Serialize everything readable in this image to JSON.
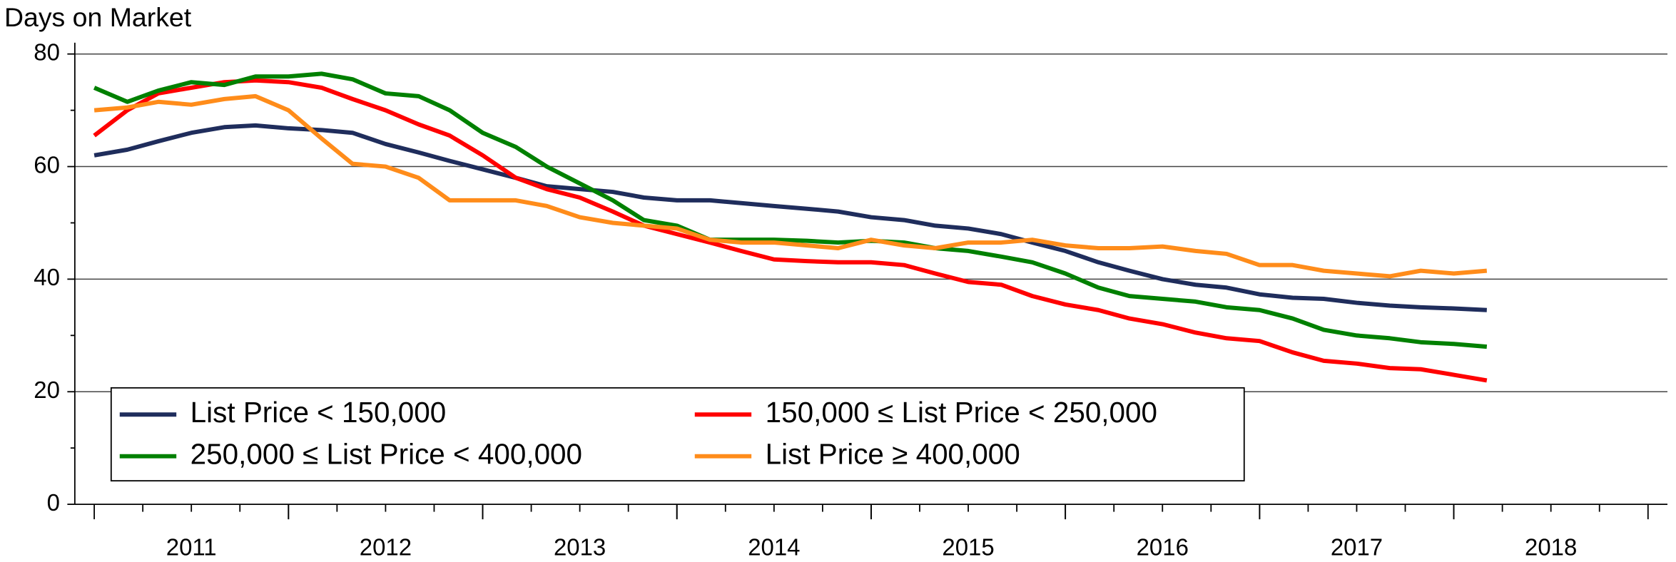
{
  "chart_data": {
    "type": "line",
    "ylabel": "Days on Market",
    "x": [
      2011,
      2011.17,
      2011.33,
      2011.5,
      2011.67,
      2011.83,
      2012,
      2012.17,
      2012.33,
      2012.5,
      2012.67,
      2012.83,
      2013,
      2013.17,
      2013.33,
      2013.5,
      2013.67,
      2013.83,
      2014,
      2014.17,
      2014.33,
      2014.5,
      2014.67,
      2014.83,
      2015,
      2015.17,
      2015.33,
      2015.5,
      2015.67,
      2015.83,
      2016,
      2016.17,
      2016.33,
      2016.5,
      2016.67,
      2016.83,
      2017,
      2017.17,
      2017.33,
      2017.5,
      2017.67,
      2017.83,
      2018,
      2018.17
    ],
    "series": [
      {
        "name": "List Price < 150,000",
        "color": "#1f2d5c",
        "values": [
          62,
          63,
          64.5,
          66,
          67,
          67.3,
          66.8,
          66.5,
          66,
          64,
          62.5,
          61,
          59.5,
          58,
          56.5,
          56,
          55.5,
          54.5,
          54,
          54,
          53.5,
          53,
          52.5,
          52,
          51,
          50.5,
          49.5,
          49,
          48,
          46.5,
          45,
          43,
          41.5,
          40,
          39,
          38.5,
          37.3,
          36.7,
          36.5,
          35.8,
          35.3,
          35,
          34.8,
          34.5
        ]
      },
      {
        "name": "150,000 ≤ List Price < 250,000",
        "color": "#ff0000",
        "values": [
          65.5,
          70,
          73,
          74,
          75,
          75.3,
          75,
          74,
          72,
          70,
          67.5,
          65.5,
          62,
          58,
          56,
          54.5,
          52,
          49.5,
          48,
          46.5,
          45,
          43.5,
          43.2,
          43,
          43,
          42.5,
          41,
          39.5,
          39,
          37,
          35.5,
          34.5,
          33,
          32,
          30.5,
          29.5,
          29,
          27,
          25.5,
          25,
          24.2,
          24,
          23,
          22
        ]
      },
      {
        "name": "250,000 ≤ List Price < 400,000",
        "color": "#008000",
        "values": [
          74,
          71.5,
          73.5,
          75,
          74.5,
          76,
          76,
          76.5,
          75.5,
          73,
          72.5,
          70,
          66,
          63.5,
          60,
          57,
          54,
          50.5,
          49.5,
          47,
          47,
          47,
          46.8,
          46.5,
          46.8,
          46.5,
          45.5,
          45,
          44,
          43,
          41,
          38.5,
          37,
          36.5,
          36,
          35,
          34.5,
          33,
          31,
          30,
          29.5,
          28.8,
          28.5,
          28
        ]
      },
      {
        "name": "List Price ≥ 400,000",
        "color": "#ff8c1a",
        "values": [
          70,
          70.5,
          71.5,
          71,
          72,
          72.5,
          70,
          65,
          60.5,
          60,
          58,
          54,
          54,
          54,
          53,
          51,
          50,
          49.5,
          49,
          47,
          46.5,
          46.5,
          46,
          45.5,
          47,
          46,
          45.5,
          46.5,
          46.5,
          47,
          46,
          45.5,
          45.5,
          45.8,
          45,
          44.5,
          42.5,
          42.5,
          41.5,
          41,
          40.5,
          41.5,
          41,
          41.5
        ]
      }
    ],
    "xlim": [
      2010.9,
      2019.1
    ],
    "xticks": [
      {
        "value": 2011.5,
        "label": "2011"
      },
      {
        "value": 2012.5,
        "label": "2012"
      },
      {
        "value": 2013.5,
        "label": "2013"
      },
      {
        "value": 2014.5,
        "label": "2014"
      },
      {
        "value": 2015.5,
        "label": "2015"
      },
      {
        "value": 2016.5,
        "label": "2016"
      },
      {
        "value": 2017.5,
        "label": "2017"
      },
      {
        "value": 2018.5,
        "label": "2018"
      }
    ],
    "ylim": [
      0,
      82
    ],
    "yticks": [
      0,
      20,
      40,
      60,
      80
    ],
    "grid": true,
    "legend": "lower left"
  }
}
